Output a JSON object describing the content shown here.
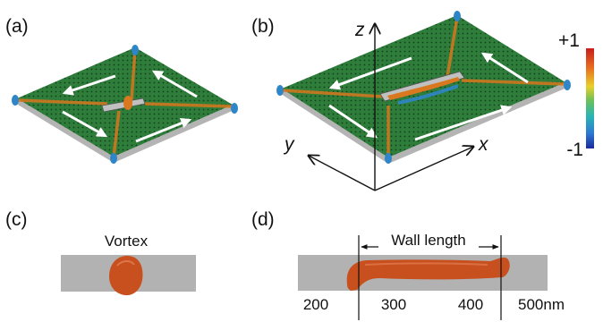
{
  "panels": {
    "a": {
      "label": "(a)"
    },
    "b": {
      "label": "(b)"
    },
    "c": {
      "label": "(c)",
      "text": "Vortex"
    },
    "d": {
      "label": "(d)",
      "wall_label": "Wall length",
      "ticks": [
        "200",
        "300",
        "400",
        "500nm"
      ]
    }
  },
  "axes": {
    "x": "x",
    "y": "y",
    "z": "z"
  },
  "colorbar": {
    "max": "+1",
    "min": "-1"
  },
  "colors": {
    "film_green": "#2e7d3a",
    "rim_gray": "#b4b4b4",
    "domain_wall_orange": "#d9781e",
    "core_red": "#c8501e",
    "vertex_blue": "#2e86c8",
    "arrow_white": "#ffffff"
  }
}
